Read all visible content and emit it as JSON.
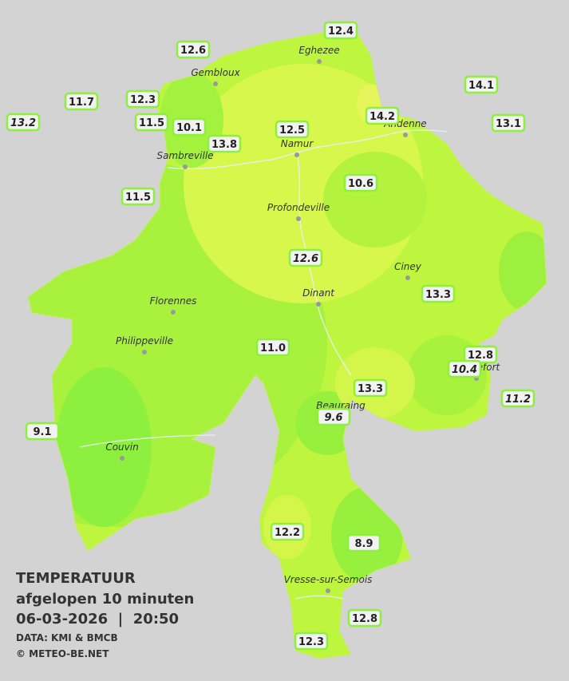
{
  "title": "TEMPERATUUR",
  "subtitle": "afgelopen 10 minuten",
  "datetime": "06-03-2026  |  20:50",
  "source": "DATA: KMI & BMCB",
  "credit": "© METEO-BE.NET",
  "cities": [
    {
      "name": "Eghezee"
    },
    {
      "name": "Gembloux"
    },
    {
      "name": "Andenne"
    },
    {
      "name": "Namur"
    },
    {
      "name": "Sambreville"
    },
    {
      "name": "Profondeville"
    },
    {
      "name": "Ciney"
    },
    {
      "name": "Dinant"
    },
    {
      "name": "Florennes"
    },
    {
      "name": "Philippeville"
    },
    {
      "name": "Beauraing"
    },
    {
      "name": "Couvin"
    },
    {
      "name": "Rochefort"
    },
    {
      "name": "Vresse-sur-Semois"
    }
  ],
  "stations": [
    {
      "label": "12.4",
      "italic": false
    },
    {
      "label": "12.6",
      "italic": false
    },
    {
      "label": "14.1",
      "italic": false
    },
    {
      "label": "11.7",
      "italic": false
    },
    {
      "label": "12.3",
      "italic": false
    },
    {
      "label": "13.2",
      "italic": true
    },
    {
      "label": "11.5",
      "italic": false
    },
    {
      "label": "10.1",
      "italic": false
    },
    {
      "label": "14.2",
      "italic": false
    },
    {
      "label": "13.1",
      "italic": false
    },
    {
      "label": "12.5",
      "italic": false
    },
    {
      "label": "13.8",
      "italic": false
    },
    {
      "label": "10.6",
      "italic": false
    },
    {
      "label": "11.5",
      "italic": false
    },
    {
      "label": "12.6",
      "italic": true
    },
    {
      "label": "13.3",
      "italic": false
    },
    {
      "label": "11.0",
      "italic": false
    },
    {
      "label": "12.8",
      "italic": false
    },
    {
      "label": "10.4",
      "italic": true
    },
    {
      "label": "13.3",
      "italic": false
    },
    {
      "label": "11.2",
      "italic": true
    },
    {
      "label": "9.6",
      "italic": true
    },
    {
      "label": "9.1",
      "italic": false
    },
    {
      "label": "12.2",
      "italic": false
    },
    {
      "label": "8.9",
      "italic": false
    },
    {
      "label": "12.8",
      "italic": false
    },
    {
      "label": "12.3",
      "italic": false
    }
  ]
}
